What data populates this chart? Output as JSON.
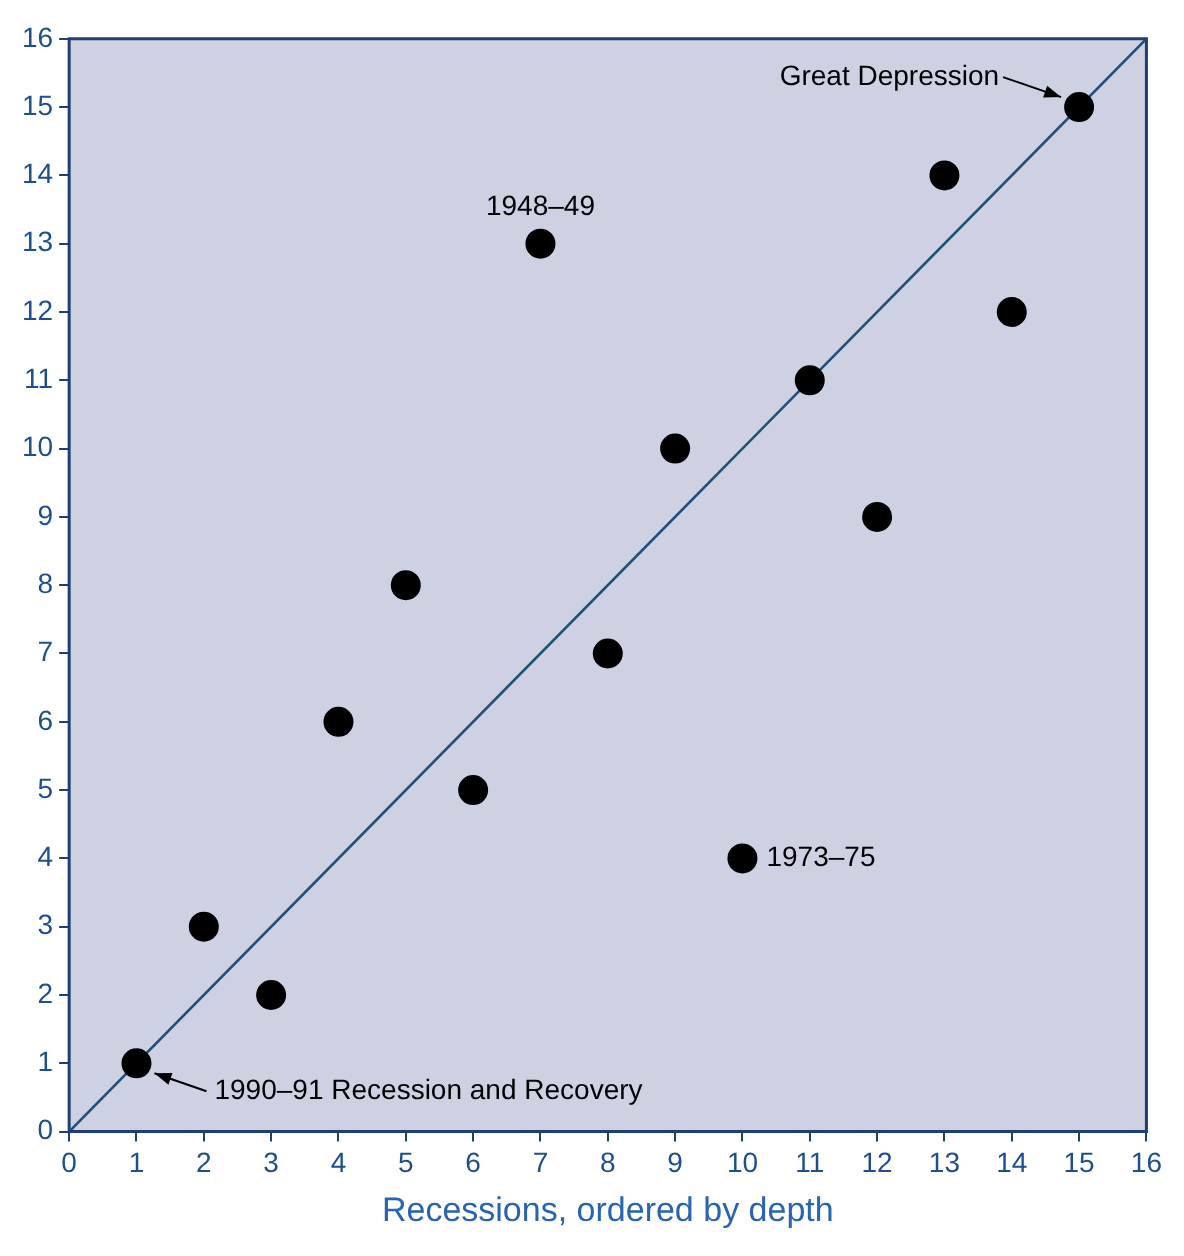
{
  "chart_data": {
    "type": "scatter",
    "xlabel": "Recessions, ordered by depth",
    "x": [
      1,
      2,
      3,
      4,
      5,
      6,
      7,
      8,
      9,
      10,
      11,
      12,
      13,
      14,
      15
    ],
    "series": [
      {
        "color": "#000000",
        "values": [
          1,
          3,
          2,
          6,
          8,
          5,
          13,
          7,
          10,
          4,
          11,
          9,
          14,
          12,
          15
        ]
      },
      {
        "type": "line",
        "color": "#1f4e79",
        "x": [
          0,
          16
        ],
        "values": [
          0,
          16
        ],
        "marker": "none"
      }
    ],
    "xlim": [
      0,
      16
    ],
    "ylim": [
      0,
      16
    ],
    "xticks": [
      0,
      1,
      2,
      3,
      4,
      5,
      6,
      7,
      8,
      9,
      10,
      11,
      12,
      13,
      14,
      15,
      16
    ],
    "yticks": [
      0,
      1,
      2,
      3,
      4,
      5,
      6,
      7,
      8,
      9,
      10,
      11,
      12,
      13,
      14,
      15,
      16
    ],
    "legend": false,
    "marker": "circle",
    "annotations": [
      {
        "text": "Great Depression",
        "x": 15,
        "y": 15
      },
      {
        "text": "1990–91 Recession and Recovery",
        "x": 1,
        "y": 1
      },
      {
        "text": "1948–49",
        "x": 7,
        "y": 13
      },
      {
        "text": "1973–75",
        "x": 10,
        "y": 4
      }
    ]
  }
}
